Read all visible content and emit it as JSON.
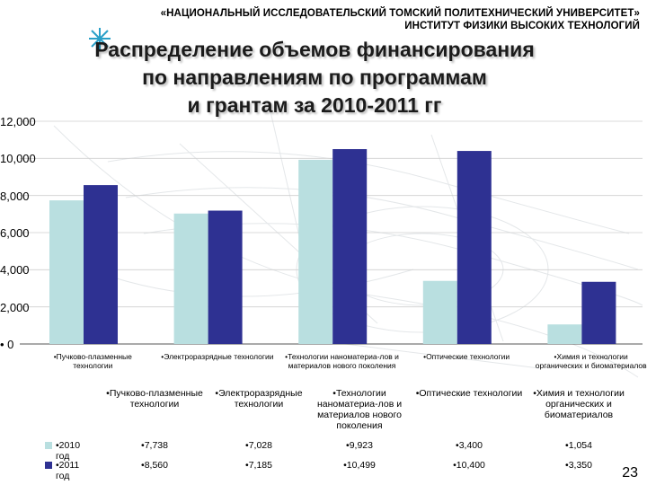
{
  "header": {
    "line1": "«НАЦИОНАЛЬНЫЙ ИССЛЕДОВАТЕЛЬСКИЙ ТОМСКИЙ ПОЛИТЕХНИЧЕСКИЙ УНИВЕРСИТЕТ»",
    "line2": "ИНСТИТУТ ФИЗИКИ ВЫСОКИХ ТЕХНОЛОГИЙ"
  },
  "slide": {
    "page_number": "23"
  },
  "colors": {
    "series_2010": "#b9dfe0",
    "series_2011": "#2e3192"
  },
  "chart_data": {
    "type": "bar",
    "title_lines": [
      "Распределение объемов финансирования",
      "по направлениям по программам",
      "и грантам за 2010-2011 гг"
    ],
    "categories": [
      "•Пучково-плазменные технологии",
      "•Электроразрядные технологии",
      "•Технологии наноматериа-лов и материалов нового поколения",
      "•Оптические технологии",
      "•Химия и технологии органических и биоматериалов"
    ],
    "series": [
      {
        "name": "2010 год",
        "values": [
          7738,
          7028,
          9923,
          3400,
          1054
        ]
      },
      {
        "name": "2011 год",
        "values": [
          8560,
          7185,
          10499,
          10400,
          3350
        ]
      }
    ],
    "yticks": [
      "• 0",
      "2,000",
      "4,000",
      "6,000",
      "8,000",
      "10,000",
      "12,000"
    ],
    "ytick_values": [
      0,
      2000,
      4000,
      6000,
      8000,
      10000,
      12000
    ],
    "ylim": [
      0,
      12000
    ],
    "grid": true,
    "legend": "table-left",
    "table": {
      "column_headers": [
        "•Пучково-плазменные технологии",
        "•Электроразрядные технологии",
        "•Технологии наноматериа-лов и материалов нового поколения",
        "•Оптические технологии",
        "•Химия и технологии органических и биоматериалов"
      ],
      "row_labels": [
        "•2010 год",
        "•2011 год"
      ],
      "rows": [
        [
          "•7,738",
          "•7,028",
          "•9,923",
          "•3,400",
          "•1,054"
        ],
        [
          "•8,560",
          "•7,185",
          "•10,499",
          "•10,400",
          "•3,350"
        ]
      ]
    }
  }
}
